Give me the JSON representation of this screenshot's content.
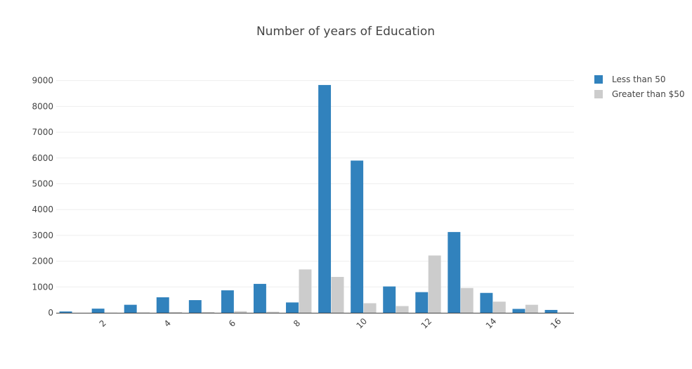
{
  "chart_data": {
    "type": "bar",
    "title": "Number of years of Education",
    "xlabel": "",
    "ylabel": "",
    "x": [
      1,
      2,
      3,
      4,
      5,
      6,
      7,
      8,
      9,
      10,
      11,
      12,
      13,
      14,
      15,
      16
    ],
    "xticks": [
      "2",
      "4",
      "6",
      "8",
      "10",
      "12",
      "14",
      "16"
    ],
    "yticks": [
      "0",
      "1000",
      "2000",
      "3000",
      "4000",
      "5000",
      "6000",
      "7000",
      "8000",
      "9000"
    ],
    "ylim": [
      0,
      9400
    ],
    "xlim": [
      0.5,
      16.5
    ],
    "grid": true,
    "legend_position": "top-right",
    "series": [
      {
        "name": "Less than 50",
        "color": "#3182bd",
        "values": [
          50,
          160,
          310,
          600,
          490,
          870,
          1120,
          400,
          8830,
          5900,
          1020,
          800,
          3130,
          770,
          150,
          110
        ]
      },
      {
        "name": "Greater than $50",
        "color": "#cccccc",
        "values": [
          0,
          5,
          15,
          25,
          30,
          60,
          40,
          1680,
          1390,
          370,
          260,
          2220,
          960,
          430,
          310,
          10
        ]
      }
    ]
  }
}
